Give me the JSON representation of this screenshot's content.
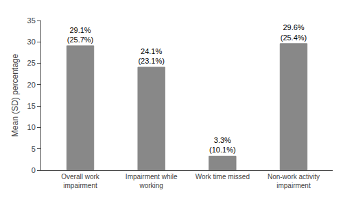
{
  "chart_data": {
    "type": "bar",
    "categories": [
      "Overall work\nimpairment",
      "Impairment while\nworking",
      "Work time missed",
      "Non-work activity\nimpairment"
    ],
    "values": [
      29.1,
      24.1,
      3.3,
      29.6
    ],
    "value_labels": [
      "29.1%\n(25.7%)",
      "24.1%\n(23.1%)",
      "3.3%\n(10.1%)",
      "29.6%\n(25.4%)"
    ],
    "data_labels": true,
    "color": "#888888",
    "ylabel": "Mean (SD) percentage",
    "ylim": [
      0,
      35
    ],
    "yticks": [
      0,
      5,
      10,
      15,
      20,
      25,
      30,
      35
    ],
    "grid": false
  }
}
